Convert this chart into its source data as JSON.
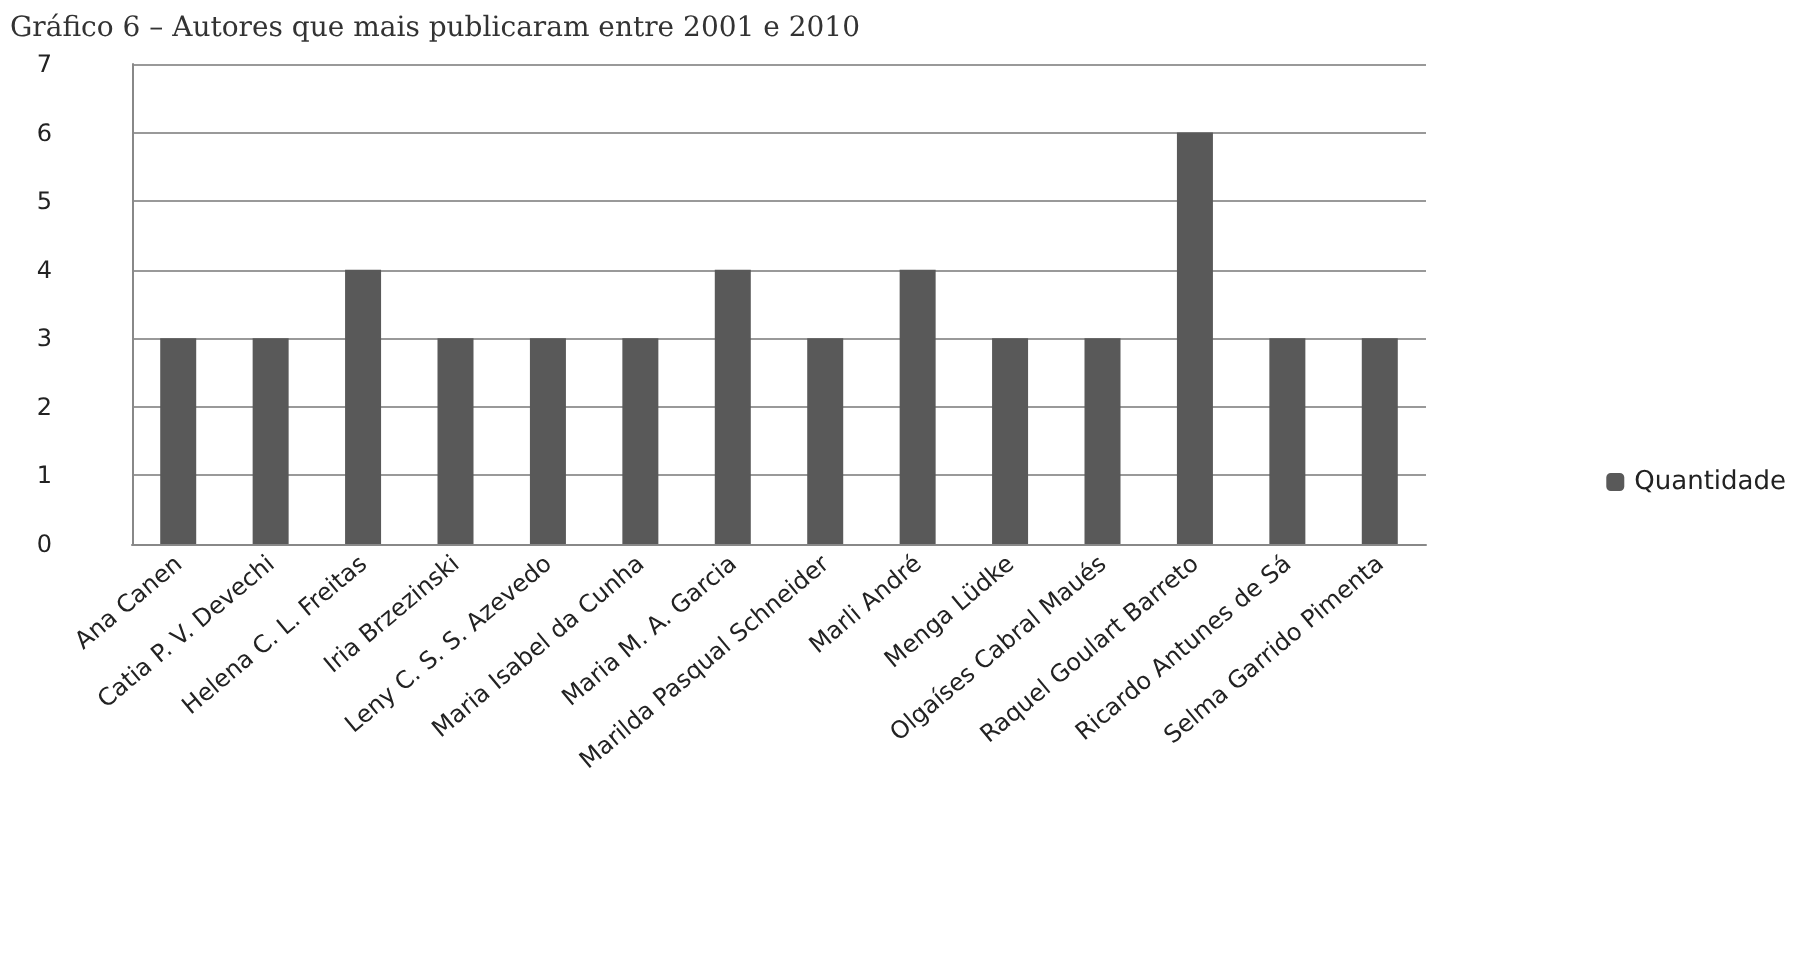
{
  "chart_data": {
    "type": "bar",
    "title": "Gráfico 6 – Autores que mais publicaram entre 2001 e 2010",
    "categories": [
      "Ana Canen",
      "Catia P. V. Devechi",
      "Helena C. L. Freitas",
      "Iria Brzezinski",
      "Leny C. S. S. Azevedo",
      "Maria Isabel da Cunha",
      "Maria M. A. Garcia",
      "Marilda Pasqual Schneider",
      "Marli André",
      "Menga Lüdke",
      "Olgaíses Cabral Maués",
      "Raquel Goulart Barreto",
      "Ricardo Antunes de Sá",
      "Selma Garrido Pimenta"
    ],
    "series": [
      {
        "name": "Quantidade",
        "color": "#595959",
        "values": [
          3,
          3,
          4,
          3,
          3,
          3,
          4,
          3,
          4,
          3,
          3,
          6,
          3,
          3
        ]
      }
    ],
    "ylim": [
      0,
      7
    ],
    "yticks": [
      0,
      1,
      2,
      3,
      4,
      5,
      6,
      7
    ],
    "grid": "y",
    "legend": "right"
  }
}
